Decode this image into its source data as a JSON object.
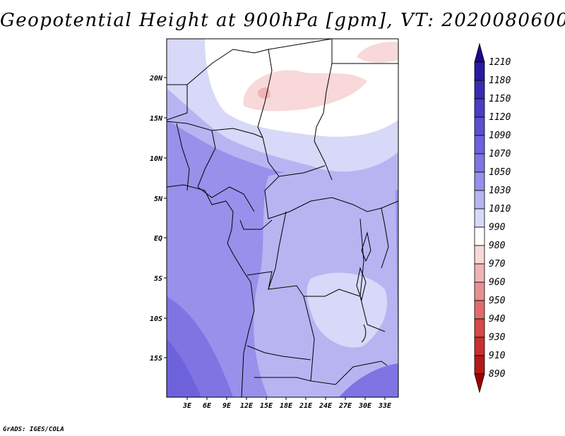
{
  "title": "Geopotential Height at 900hPa [gpm], VT: 2020080600",
  "footer": "GrADS: IGES/COLA",
  "map": {
    "lon_ticks": [
      "3E",
      "6E",
      "9E",
      "12E",
      "15E",
      "18E",
      "21E",
      "24E",
      "27E",
      "30E",
      "33E"
    ],
    "lat_ticks": [
      "20N",
      "15N",
      "10N",
      "5N",
      "EQ",
      "5S",
      "10S",
      "15S"
    ]
  },
  "colorbar": {
    "levels": [
      1210,
      1180,
      1150,
      1120,
      1090,
      1070,
      1050,
      1030,
      1010,
      990,
      980,
      970,
      960,
      950,
      940,
      930,
      910,
      890
    ],
    "colors": [
      "#1a0a8c",
      "#2a1aa0",
      "#3a2ab4",
      "#4a3cc4",
      "#5b4ed4",
      "#6d62dc",
      "#7f74e2",
      "#9890ea",
      "#b8b4f2",
      "#d8d8f8",
      "#ffffff",
      "#f8d8d8",
      "#f0b4b4",
      "#e89090",
      "#e06c6c",
      "#d84848",
      "#c83030",
      "#b41818",
      "#a00000"
    ]
  }
}
